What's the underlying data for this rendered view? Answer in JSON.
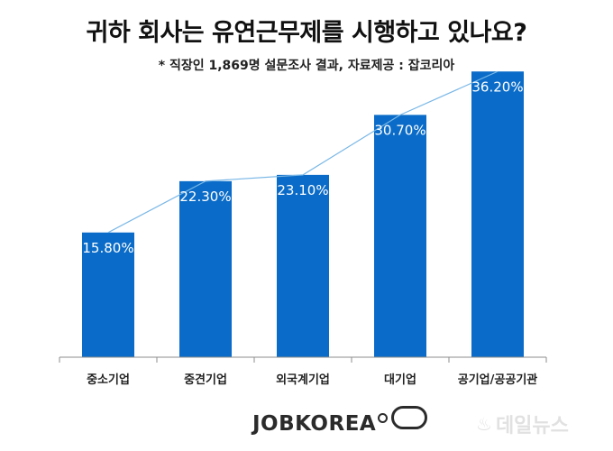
{
  "chart_data": {
    "type": "bar",
    "title": "귀하 회사는 유연근무제를 시행하고 있나요?",
    "subtitle": "* 직장인 1,869명 설문조사 결과, 자료제공 : 잡코리아",
    "categories": [
      "중소기업",
      "중견기업",
      "외국계기업",
      "대기업",
      "공기업/공공기관"
    ],
    "values": [
      15.8,
      22.3,
      23.1,
      30.7,
      36.2
    ],
    "data_labels": [
      "15.80%",
      "22.30%",
      "23.10%",
      "30.70%",
      "36.20%"
    ],
    "xlabel": "",
    "ylabel": "",
    "ylim": [
      0,
      40
    ],
    "grid": false,
    "bar_color": "#0a6cc8",
    "trend_line_color": "#79b7e6",
    "has_trend_line": true
  },
  "footer": {
    "logo_text": "JOBKOREA",
    "watermark_text": "데일뉴스"
  }
}
